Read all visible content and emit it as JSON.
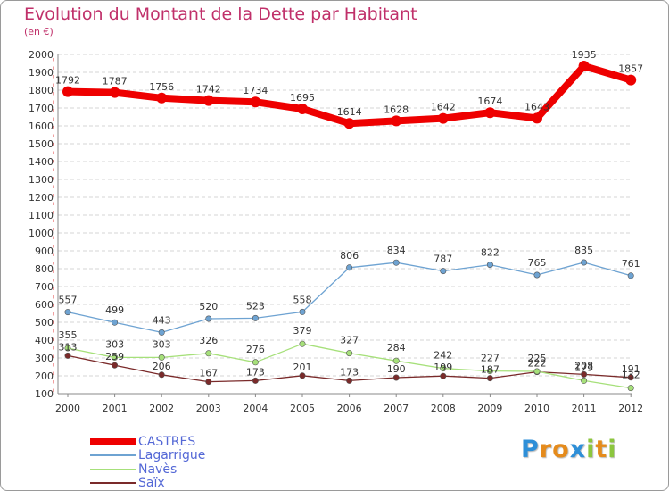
{
  "chart_data": {
    "type": "line",
    "title": "Evolution du Montant de la Dette par Habitant",
    "subtitle": "(en €)",
    "x": [
      "2000",
      "2001",
      "2002",
      "2003",
      "2004",
      "2005",
      "2006",
      "2007",
      "2008",
      "2009",
      "2010",
      "2011",
      "2012"
    ],
    "ylim": [
      100,
      2000
    ],
    "yticks": [
      100,
      200,
      300,
      400,
      500,
      600,
      700,
      800,
      900,
      1000,
      1100,
      1200,
      1300,
      1400,
      1500,
      1600,
      1700,
      1800,
      1900,
      2000
    ],
    "grid": "horizontal dashed",
    "legend_position": "bottom-left",
    "series": [
      {
        "name": "CASTRES",
        "color": "#ee0000",
        "values": [
          1792,
          1787,
          1756,
          1742,
          1734,
          1695,
          1614,
          1628,
          1642,
          1674,
          1643,
          1935,
          1857
        ]
      },
      {
        "name": "Lagarrigue",
        "color": "#6ea3d2",
        "values": [
          557,
          499,
          443,
          520,
          523,
          558,
          806,
          834,
          787,
          822,
          765,
          835,
          761
        ]
      },
      {
        "name": "Navès",
        "color": "#a6e07a",
        "values": [
          355,
          303,
          303,
          326,
          276,
          379,
          327,
          284,
          242,
          227,
          225,
          173,
          132
        ]
      },
      {
        "name": "Saïx",
        "color": "#7a2a2a",
        "values": [
          313,
          259,
          206,
          167,
          173,
          201,
          173,
          190,
          199,
          187,
          222,
          208,
          191
        ]
      }
    ]
  },
  "logo": {
    "letters": [
      {
        "ch": "P",
        "color": "#2e8fd8"
      },
      {
        "ch": "r",
        "color": "#e58b1c"
      },
      {
        "ch": "o",
        "color": "#e58b1c"
      },
      {
        "ch": "x",
        "color": "#2e8fd8"
      },
      {
        "ch": "i",
        "color": "#8cc63e"
      },
      {
        "ch": "t",
        "color": "#e58b1c"
      },
      {
        "ch": "i",
        "color": "#8cc63e"
      }
    ]
  }
}
